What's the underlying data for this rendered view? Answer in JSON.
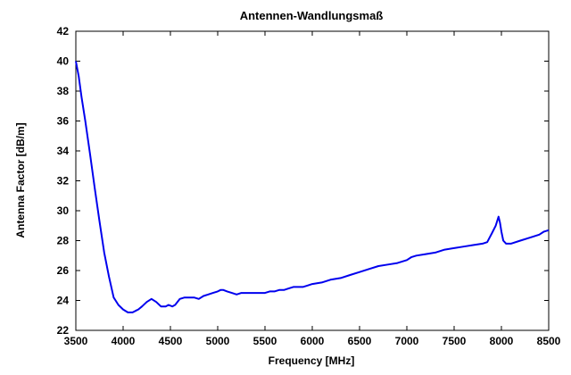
{
  "chart_data": {
    "type": "line",
    "title": "Antennen-Wandlungsmaß",
    "xlabel": "Frequency [MHz]",
    "ylabel": "Antenna Factor [dB/m]",
    "xlim": [
      3500,
      8500
    ],
    "ylim": [
      22,
      42
    ],
    "xticks": [
      3500,
      4000,
      4500,
      5000,
      5500,
      6000,
      6500,
      7000,
      7500,
      8000,
      8500
    ],
    "yticks": [
      22,
      24,
      26,
      28,
      30,
      32,
      34,
      36,
      38,
      40,
      42
    ],
    "grid": false,
    "legend": "none",
    "series": [
      {
        "color": "#0000ee",
        "x": [
          3500,
          3530,
          3560,
          3600,
          3650,
          3700,
          3750,
          3800,
          3850,
          3900,
          3950,
          4000,
          4050,
          4100,
          4130,
          4160,
          4200,
          4250,
          4300,
          4350,
          4400,
          4450,
          4480,
          4520,
          4550,
          4600,
          4650,
          4700,
          4750,
          4800,
          4850,
          4900,
          4950,
          5000,
          5030,
          5060,
          5100,
          5150,
          5200,
          5250,
          5300,
          5350,
          5400,
          5450,
          5500,
          5550,
          5600,
          5650,
          5700,
          5750,
          5800,
          5850,
          5900,
          5950,
          6000,
          6100,
          6200,
          6300,
          6400,
          6500,
          6600,
          6700,
          6800,
          6900,
          7000,
          7050,
          7100,
          7200,
          7300,
          7400,
          7500,
          7600,
          7700,
          7800,
          7850,
          7900,
          7940,
          7970,
          7985,
          8000,
          8020,
          8050,
          8100,
          8200,
          8300,
          8400,
          8450,
          8500
        ],
        "y": [
          40.0,
          39.0,
          37.6,
          36.0,
          33.8,
          31.5,
          29.3,
          27.2,
          25.6,
          24.2,
          23.7,
          23.4,
          23.2,
          23.2,
          23.3,
          23.4,
          23.6,
          23.9,
          24.1,
          23.9,
          23.6,
          23.6,
          23.7,
          23.6,
          23.7,
          24.1,
          24.2,
          24.2,
          24.2,
          24.1,
          24.3,
          24.4,
          24.5,
          24.6,
          24.7,
          24.7,
          24.6,
          24.5,
          24.4,
          24.5,
          24.5,
          24.5,
          24.5,
          24.5,
          24.5,
          24.6,
          24.6,
          24.7,
          24.7,
          24.8,
          24.9,
          24.9,
          24.9,
          25.0,
          25.1,
          25.2,
          25.4,
          25.5,
          25.7,
          25.9,
          26.1,
          26.3,
          26.4,
          26.5,
          26.7,
          26.9,
          27.0,
          27.1,
          27.2,
          27.4,
          27.5,
          27.6,
          27.7,
          27.8,
          27.9,
          28.5,
          29.0,
          29.6,
          29.2,
          28.6,
          28.0,
          27.8,
          27.8,
          28.0,
          28.2,
          28.4,
          28.6,
          28.7
        ]
      }
    ]
  }
}
